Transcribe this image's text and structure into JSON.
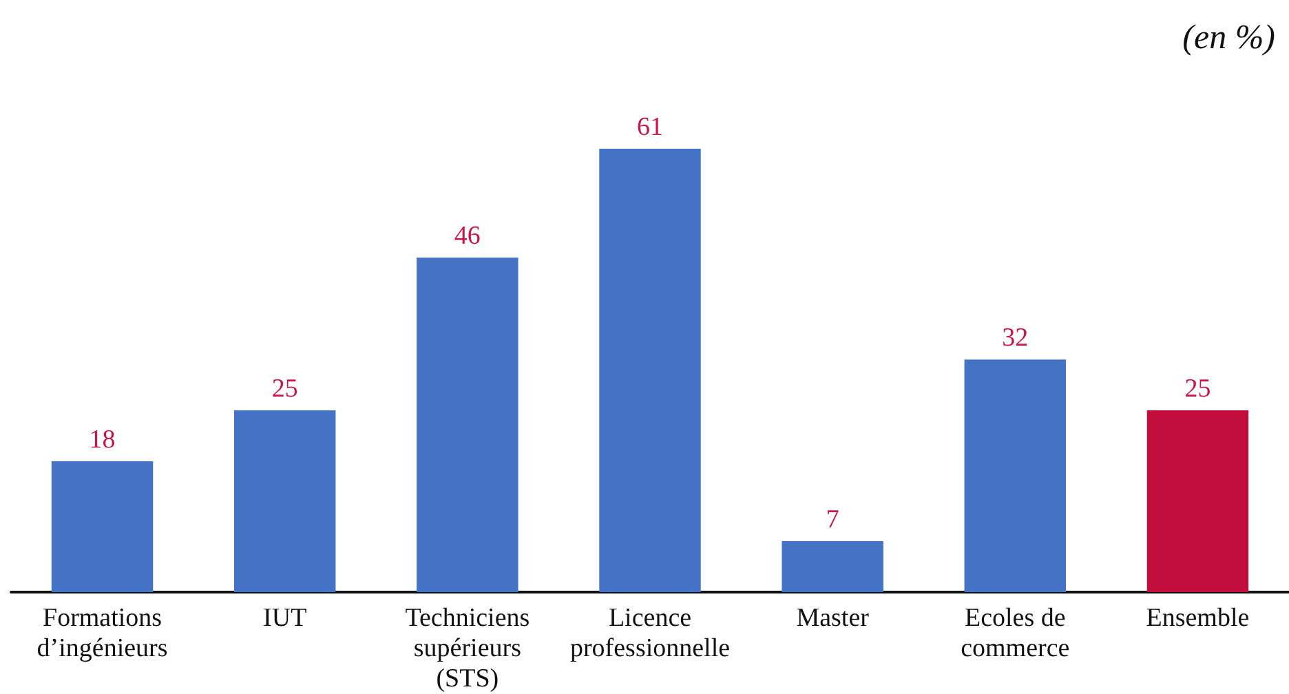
{
  "chart_data": {
    "type": "bar",
    "ylabel": "(en %)",
    "categories": [
      "Formations\nd’ingénieurs",
      "IUT",
      "Techniciens\nsupérieurs\n(STS)",
      "Licence\nprofessionnelle",
      "Master",
      "Ecoles de\ncommerce",
      "Ensemble"
    ],
    "values": [
      18,
      25,
      46,
      61,
      7,
      32,
      25
    ],
    "colors": [
      "#4472c4",
      "#4472c4",
      "#4472c4",
      "#4472c4",
      "#4472c4",
      "#4472c4",
      "#c00d3c"
    ],
    "data_labels": true
  }
}
